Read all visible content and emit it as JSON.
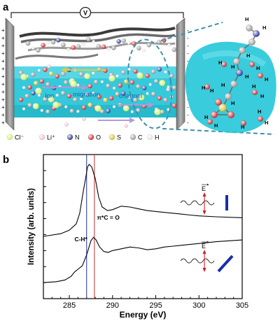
{
  "panel_a": {
    "label": "a",
    "meter_symbol": "V",
    "left_sign": "+",
    "right_sign": "-",
    "region_labels": {
      "ion": "Ion",
      "migration": "migration",
      "channel": "channel"
    },
    "legend": [
      {
        "text": "Cl⁻",
        "color": "#c9f06a"
      },
      {
        "text": "Li⁺",
        "color": "#f4c0cf"
      },
      {
        "text": "N",
        "color": "#2b3a9c"
      },
      {
        "text": "O",
        "color": "#d7262b"
      },
      {
        "text": "S",
        "color": "#d8c12a"
      },
      {
        "text": "C",
        "color": "#9a9a9a"
      },
      {
        "text": "H",
        "color": "#e6e6e6"
      }
    ],
    "zoom_atom_label": "H",
    "colors": {
      "electrolyte": "#23c6d8",
      "electrode": "#8a8a8a",
      "zoom_line": "#3c8fb0"
    }
  },
  "panel_b": {
    "label": "b",
    "chart_data": {
      "type": "line",
      "xlabel": "Energy (eV)",
      "ylabel": "Intensity (arb. units)",
      "xlim": [
        282,
        305
      ],
      "x_ticks": [
        285,
        290,
        295,
        300,
        305
      ],
      "y_tick_labels": "none",
      "vlines": [
        {
          "x": 287.0,
          "color": "#2030a0"
        },
        {
          "x": 287.9,
          "color": "#c03030"
        }
      ],
      "annotations": [
        {
          "text": "π*C = O",
          "x": 288.2
        },
        {
          "text": "C-H*",
          "x": 285.6
        }
      ],
      "series": [
        {
          "x": [
            282,
            284,
            285,
            285.8,
            286.2,
            286.6,
            286.9,
            287.1,
            287.3,
            287.6,
            288.0,
            288.4,
            288.8,
            289.4,
            290.0,
            291.0,
            292.0,
            293.0,
            294.0,
            295.0,
            296.0,
            297.0,
            298.0,
            299.0,
            300.0,
            302.0,
            305.0
          ],
          "y": [
            0.7,
            0.73,
            0.77,
            0.84,
            0.96,
            1.2,
            1.36,
            1.48,
            1.51,
            1.48,
            1.35,
            1.14,
            1.03,
            0.99,
            1.0,
            1.04,
            1.03,
            1.01,
            0.99,
            0.98,
            0.97,
            0.96,
            0.95,
            0.94,
            0.93,
            0.92,
            0.91
          ]
        },
        {
          "x": [
            282,
            283.5,
            284.5,
            285.2,
            285.6,
            286.0,
            286.5,
            287.0,
            287.5,
            287.8,
            288.1,
            288.5,
            289.0,
            289.5,
            290.0,
            291.0,
            292.0,
            293.0,
            294.0,
            295.0,
            296.0,
            297.0,
            298.0,
            299.0,
            300.0,
            302.0,
            305.0
          ],
          "y": [
            0.18,
            0.19,
            0.21,
            0.25,
            0.3,
            0.33,
            0.37,
            0.49,
            0.65,
            0.69,
            0.66,
            0.58,
            0.53,
            0.52,
            0.54,
            0.56,
            0.58,
            0.57,
            0.55,
            0.56,
            0.58,
            0.59,
            0.6,
            0.61,
            0.62,
            0.64,
            0.66
          ]
        }
      ]
    },
    "polarization_symbol": "E",
    "colors": {
      "marker": "#1a2ea8",
      "arrow": "#d02020"
    }
  }
}
